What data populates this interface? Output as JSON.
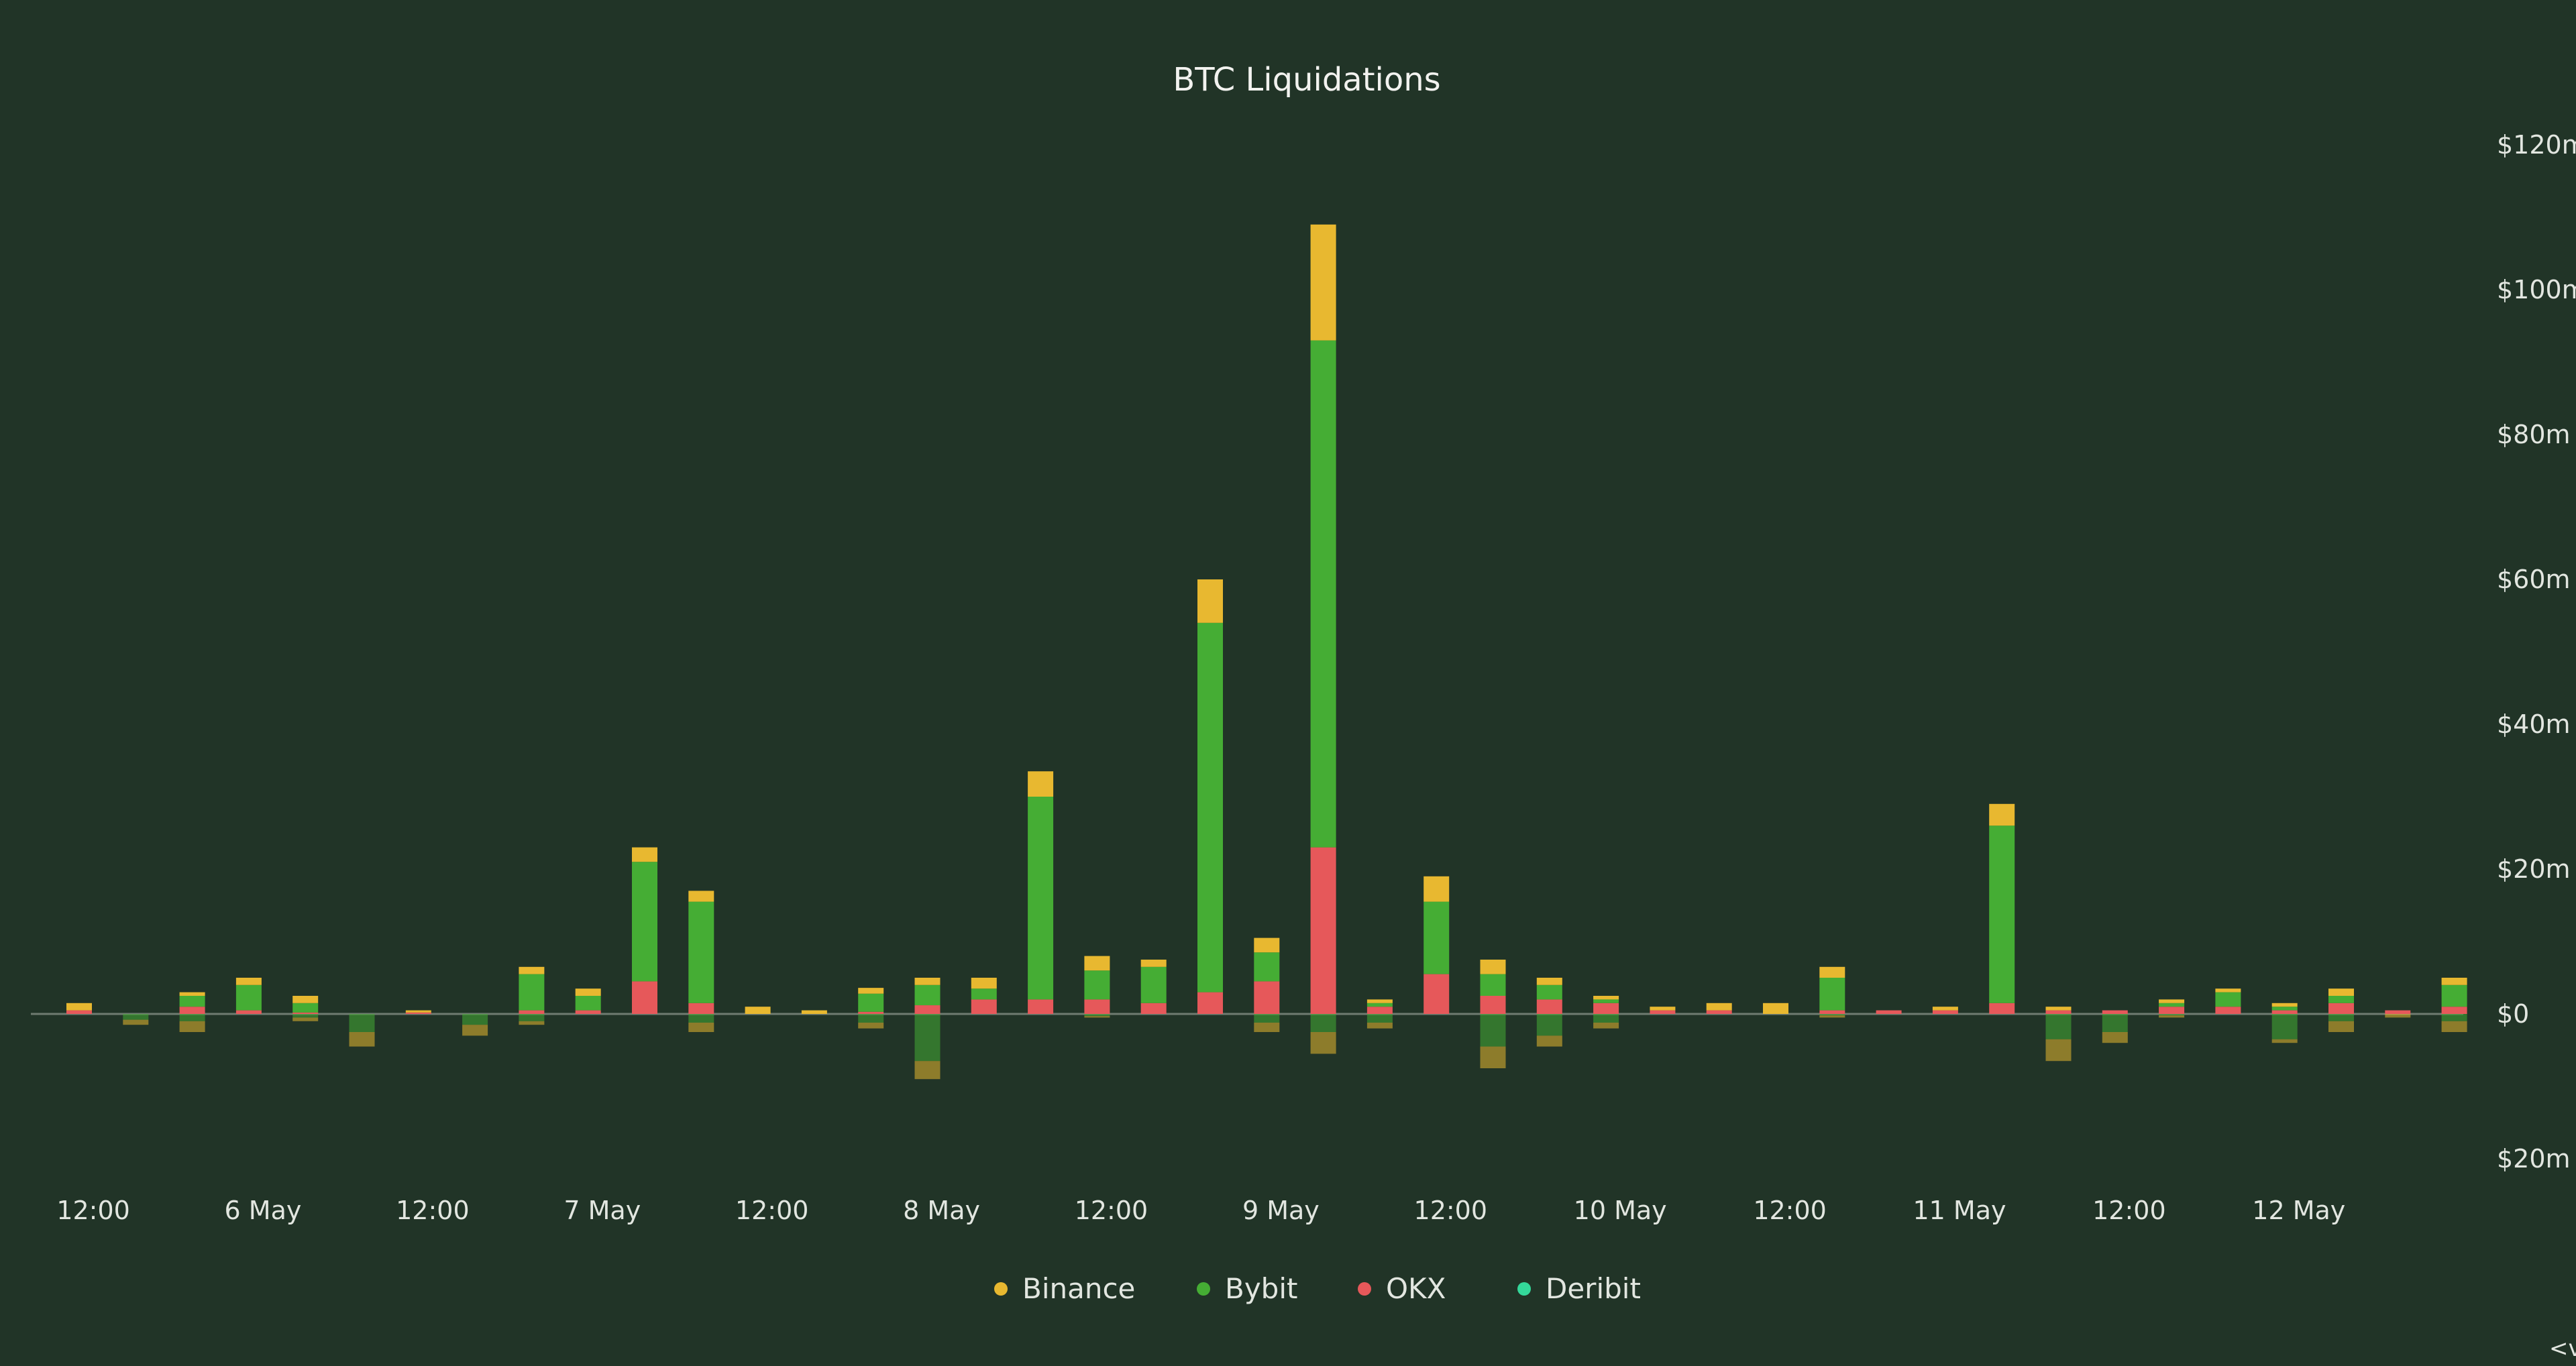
{
  "chart_data": {
    "type": "bar",
    "stacked": true,
    "title": "BTC Liquidations",
    "y_axis": {
      "position": "right",
      "range": [
        -20,
        120
      ],
      "unit": "USD millions",
      "ticks": [
        120,
        100,
        80,
        60,
        40,
        20,
        0,
        -20
      ],
      "tick_labels": [
        "$120m",
        "$100m",
        "$80m",
        "$60m",
        "$40m",
        "$20m",
        "$0",
        "$20m"
      ]
    },
    "x_axis": {
      "tick_labels": [
        "12:00",
        "6 May",
        "12:00",
        "7 May",
        "12:00",
        "8 May",
        "12:00",
        "9 May",
        "12:00",
        "10 May",
        "12:00",
        "11 May",
        "12:00",
        "12 May"
      ],
      "tick_bar_index": [
        0.25,
        3.25,
        6.25,
        9.25,
        12.25,
        15.25,
        18.25,
        21.25,
        24.25,
        27.25,
        30.25,
        33.25,
        36.25,
        39.25
      ]
    },
    "grid": false,
    "legend_position": "bottom-center",
    "series": [
      {
        "name": "Binance",
        "color": "#e8b830",
        "positive": [
          1,
          0,
          0.5,
          1,
          1,
          0,
          0.3,
          0,
          1,
          1,
          2,
          1.5,
          1,
          0.5,
          0.8,
          1,
          1.5,
          3.5,
          2,
          1,
          6,
          2,
          16,
          0.5,
          3.5,
          2,
          1,
          0.5,
          0.5,
          1,
          1.5,
          1.5,
          0,
          0.5,
          3,
          0.5,
          0,
          0.5,
          0.5,
          0.5,
          1,
          0,
          1
        ],
        "negative": [
          0,
          0.5,
          1,
          0,
          0.3,
          2,
          0,
          1,
          0.3,
          0,
          0,
          1,
          0,
          0,
          0.5,
          1.5,
          0,
          0,
          0,
          0.5,
          0,
          1,
          1.5,
          0.3,
          0,
          1.5,
          1,
          0.5,
          0,
          0,
          0,
          0.3,
          0,
          0,
          0,
          2,
          1,
          0.3,
          0,
          0,
          1,
          0.5,
          1
        ]
      },
      {
        "name": "Bybit",
        "color": "#45ad34",
        "positive": [
          0,
          0,
          1.5,
          3.5,
          1.3,
          0,
          0,
          0,
          5,
          2,
          16.5,
          14,
          0,
          0,
          2.5,
          2.8,
          1.5,
          28,
          4,
          5,
          51,
          4,
          70,
          0.5,
          10,
          3,
          2,
          0.5,
          0,
          0,
          0,
          4.5,
          0,
          0,
          24.5,
          0,
          0,
          0.5,
          2,
          0.5,
          1,
          0,
          3
        ]
      },
      {
        "name": "OKX",
        "color": "#e6585a",
        "positive": [
          0.5,
          0,
          1,
          0.5,
          0.2,
          0,
          0.2,
          0,
          0.5,
          0.5,
          4.5,
          1.5,
          0,
          0,
          0.3,
          1.2,
          2,
          2,
          2,
          1.5,
          3,
          4.5,
          23,
          1,
          5.5,
          2.5,
          2,
          1.5,
          0.5,
          0.5,
          0,
          0.5,
          0.5,
          0.5,
          1.5,
          0.5,
          0.5,
          1,
          1,
          0.5,
          1.5,
          0.5,
          1
        ]
      },
      {
        "name": "Deribit",
        "color": "#34d89a",
        "positive": []
      }
    ],
    "negative_totals": [
      0,
      1.5,
      2.5,
      0,
      1,
      4.5,
      0,
      3,
      1.5,
      0,
      0,
      2.5,
      0,
      0,
      2,
      9,
      0,
      0,
      0.5,
      0,
      0,
      2.5,
      5.5,
      2,
      0,
      7.5,
      4.5,
      2,
      0,
      0,
      0,
      0.5,
      0,
      0,
      0,
      6.5,
      4,
      0.5,
      0,
      4,
      2.5,
      0.5,
      2.5
    ],
    "negative_bybit": [
      0,
      0.8,
      1,
      0,
      0.5,
      2.5,
      0,
      1.5,
      1,
      0,
      0,
      1.2,
      0,
      0,
      1.2,
      6.5,
      0,
      0,
      0.3,
      0,
      0,
      1.2,
      2.5,
      1.2,
      0,
      4.5,
      3,
      1.2,
      0,
      0,
      0,
      0.2,
      0,
      0,
      0,
      3.5,
      2.5,
      0.2,
      0,
      3.5,
      1,
      0,
      1
    ]
  },
  "corner_text": "<v"
}
